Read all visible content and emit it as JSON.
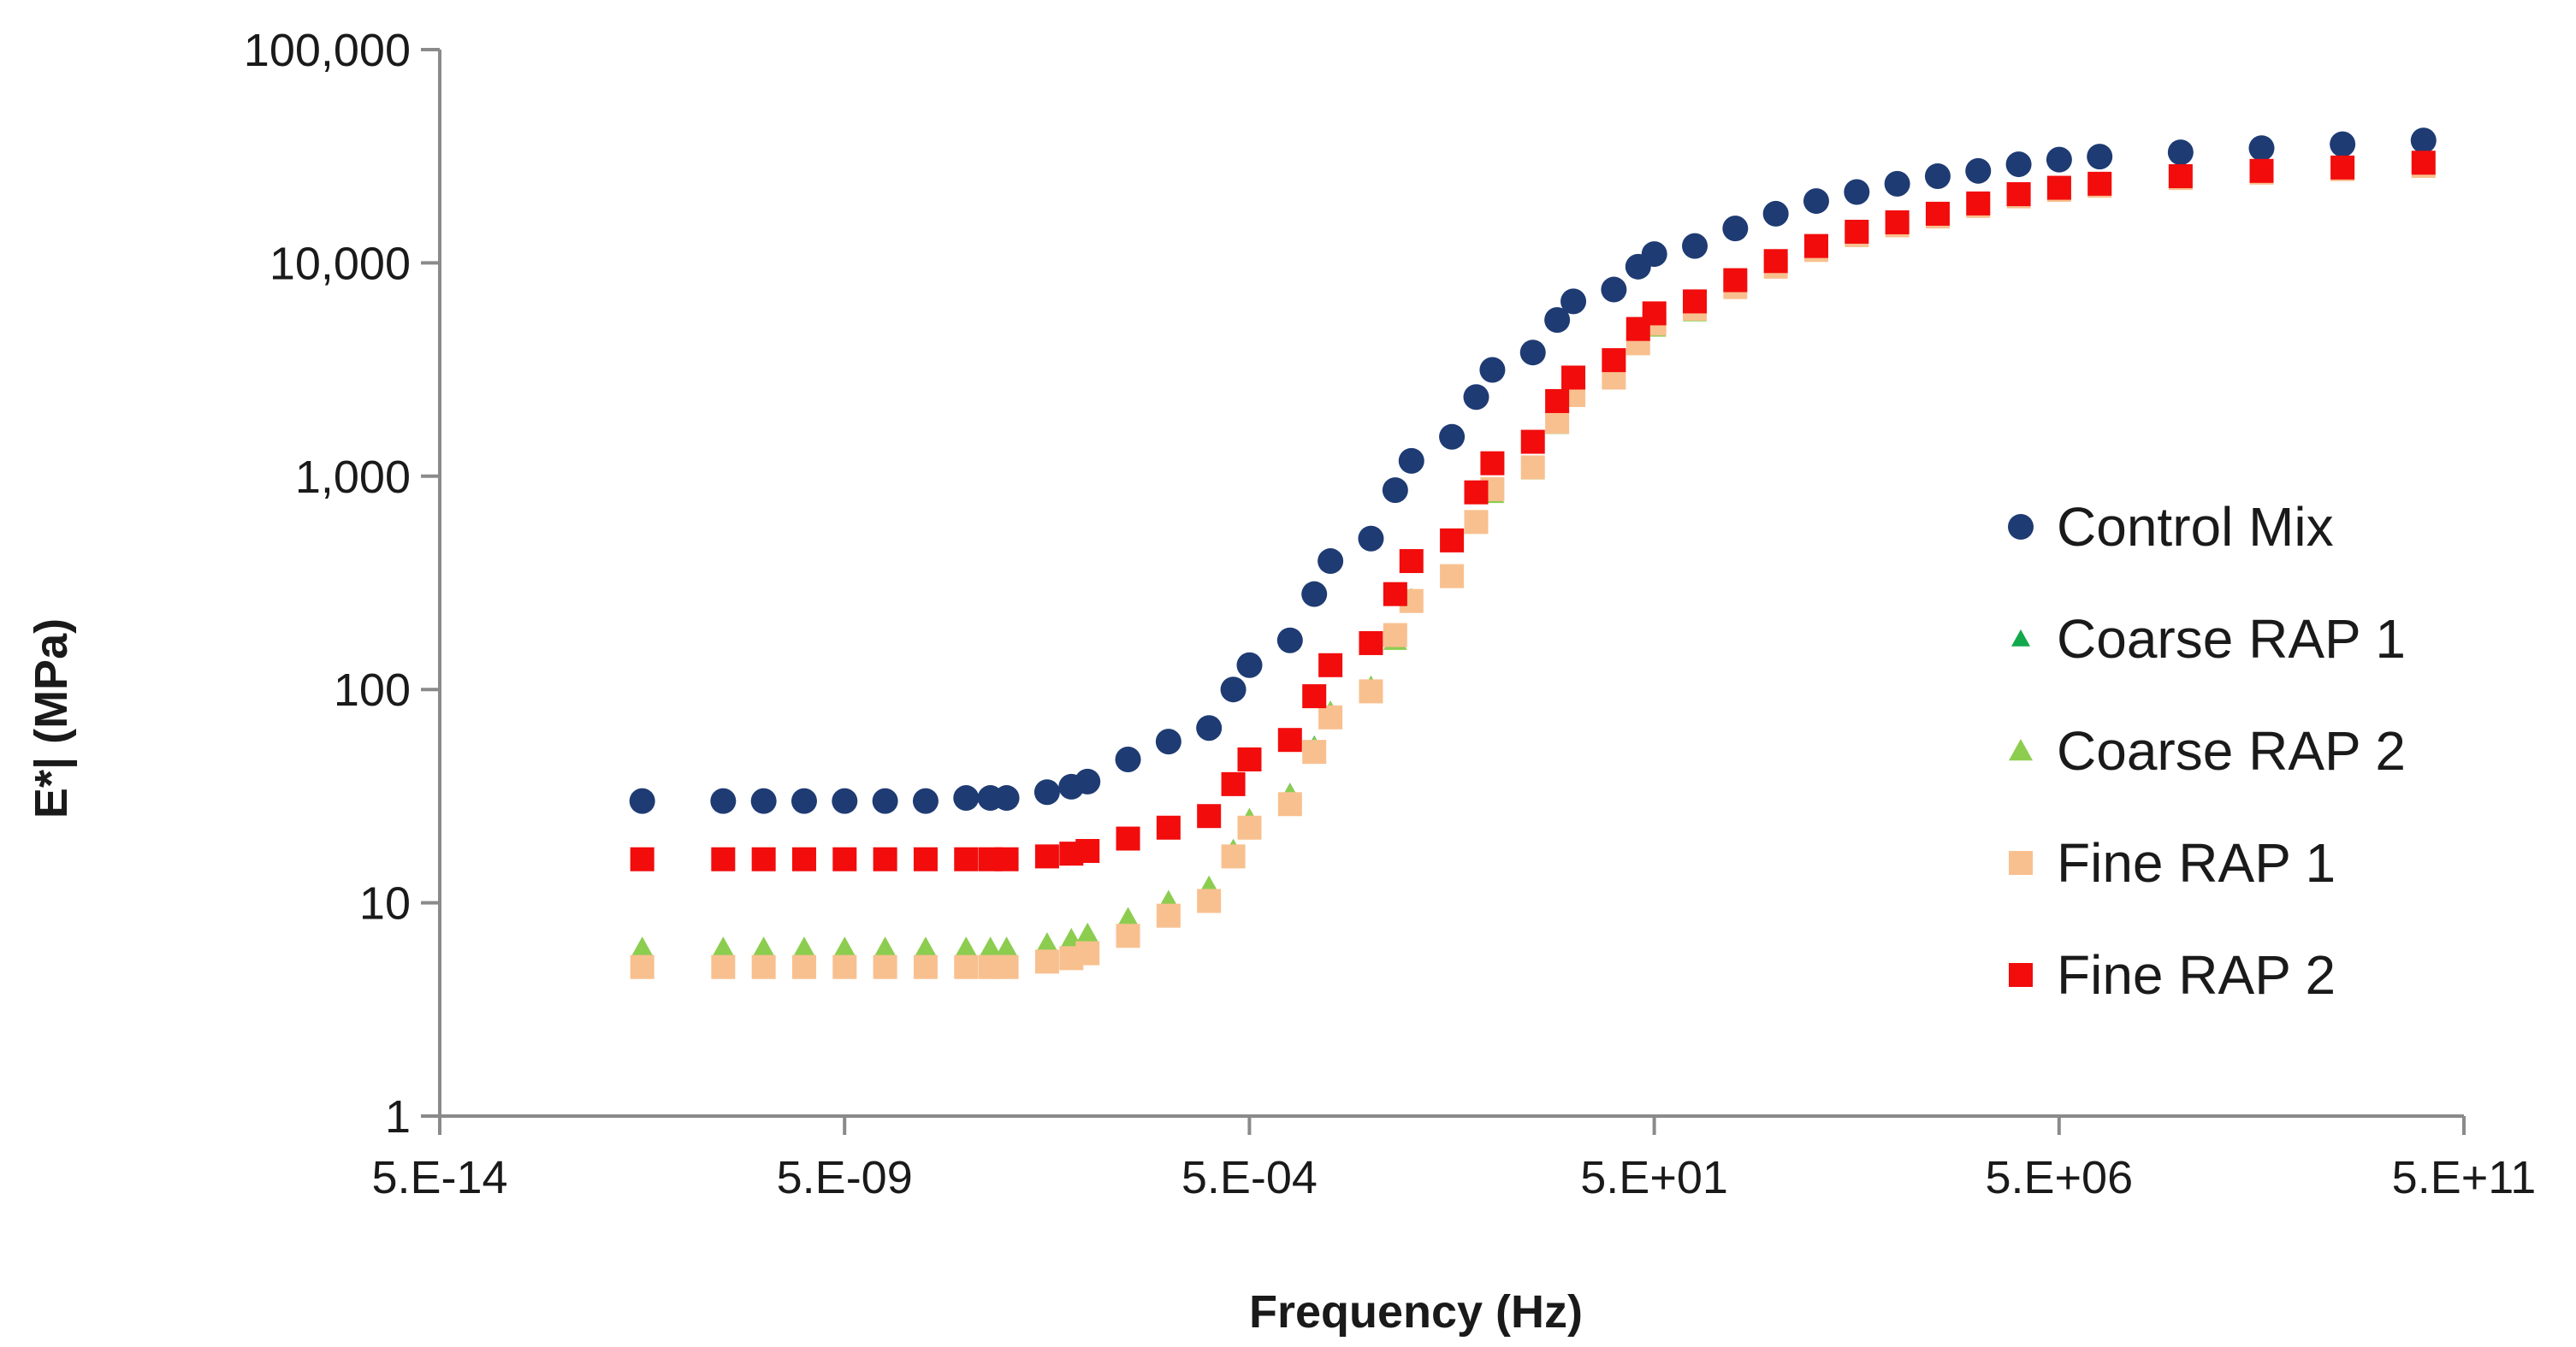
{
  "chart_data": {
    "type": "scatter",
    "title": "",
    "xlabel": "Frequency (Hz)",
    "ylabel": "E*| (MPa)",
    "x_scale": "log",
    "y_scale": "log",
    "xlim": [
      5e-14,
      500000000000.0
    ],
    "ylim": [
      1,
      100000
    ],
    "x_tick_values": [
      5e-14,
      5e-09,
      0.0005,
      50.0,
      5000000.0,
      500000000000.0
    ],
    "x_tick_labels": [
      "5.E-14",
      "5.E-09",
      "5.E-04",
      "5.E+01",
      "5.E+06",
      "5.E+11"
    ],
    "y_tick_values": [
      1,
      10,
      100,
      1000,
      10000,
      100000
    ],
    "y_tick_labels": [
      "1",
      "10",
      "100",
      "1,000",
      "10,000",
      "100,000"
    ],
    "grid": false,
    "legend_position": "right",
    "log_x": [
      -10.8,
      -9.8,
      -9.3,
      -8.8,
      -8.3,
      -7.8,
      -7.3,
      -6.8,
      -6.5,
      -6.3,
      -5.8,
      -5.5,
      -5.3,
      -4.8,
      -4.3,
      -3.8,
      -3.5,
      -3.3,
      -2.8,
      -2.5,
      -2.3,
      -1.8,
      -1.5,
      -1.3,
      -0.8,
      -0.5,
      -0.3,
      0.2,
      0.5,
      0.7,
      1.2,
      1.5,
      1.7,
      2.2,
      2.7,
      3.2,
      3.7,
      4.2,
      4.7,
      5.2,
      5.7,
      6.2,
      6.7,
      7.2,
      8.2,
      9.2,
      10.2,
      11.2
    ],
    "series": [
      {
        "name": "Control Mix",
        "marker": "circle",
        "color": "#1f3b73",
        "values": [
          30,
          30,
          30,
          30,
          30,
          30,
          30,
          31,
          31,
          31,
          33,
          35,
          37,
          47,
          57,
          66,
          100,
          130,
          170,
          280,
          400,
          510,
          860,
          1180,
          1530,
          2350,
          3150,
          3800,
          5400,
          6600,
          7500,
          9600,
          11000,
          12000,
          14500,
          17000,
          19500,
          21500,
          23500,
          25500,
          27000,
          29000,
          30500,
          31500,
          33000,
          34500,
          36000,
          37500
        ]
      },
      {
        "name": "Coarse RAP 1",
        "marker": "triangle-small",
        "color": "#12a84c",
        "values": [
          6,
          6,
          6,
          6,
          6,
          6,
          6,
          6,
          6,
          6,
          6.3,
          6.6,
          7,
          8.5,
          10,
          12,
          18,
          25,
          33,
          55,
          80,
          105,
          175,
          270,
          350,
          620,
          850,
          1100,
          1800,
          2400,
          2900,
          4200,
          5100,
          6000,
          7700,
          9600,
          11500,
          13500,
          15000,
          16500,
          18500,
          20500,
          22000,
          23000,
          25000,
          26500,
          27500,
          28500
        ]
      },
      {
        "name": "Coarse RAP 2",
        "marker": "triangle",
        "color": "#8ccd50",
        "values": [
          6.1,
          6.1,
          6.1,
          6.1,
          6.1,
          6.1,
          6.1,
          6.1,
          6.1,
          6.1,
          6.4,
          6.7,
          7.1,
          8.4,
          10.1,
          11.8,
          17.5,
          24.5,
          32,
          53,
          78,
          102,
          170,
          260,
          340,
          600,
          830,
          1070,
          1750,
          2350,
          2850,
          4100,
          5000,
          5900,
          7600,
          9500,
          11300,
          13300,
          14800,
          16300,
          18300,
          20300,
          21800,
          22800,
          24800,
          26300,
          27300,
          28300
        ]
      },
      {
        "name": "Fine RAP 1",
        "marker": "square",
        "color": "#f8c08f",
        "values": [
          5,
          5,
          5,
          5,
          5,
          5,
          5,
          5,
          5,
          5,
          5.3,
          5.5,
          5.8,
          7,
          8.7,
          10.2,
          16.5,
          22.5,
          29,
          51,
          74,
          98,
          180,
          260,
          340,
          610,
          870,
          1100,
          1800,
          2400,
          2900,
          4200,
          5200,
          6100,
          7700,
          9600,
          11500,
          13500,
          15000,
          16500,
          18500,
          20500,
          22000,
          23000,
          25000,
          26500,
          27500,
          28500
        ]
      },
      {
        "name": "Fine RAP 2",
        "marker": "square",
        "color": "#f20c0c",
        "values": [
          16,
          16,
          16,
          16,
          16,
          16,
          16,
          16,
          16,
          16,
          16.5,
          17,
          17.5,
          20,
          22.5,
          25.5,
          36,
          47,
          58,
          93,
          130,
          165,
          280,
          400,
          500,
          840,
          1150,
          1450,
          2250,
          2900,
          3500,
          4900,
          5800,
          6600,
          8300,
          10200,
          12000,
          14000,
          15500,
          17000,
          19000,
          21000,
          22500,
          23500,
          25500,
          27000,
          28000,
          29500
        ]
      }
    ]
  }
}
